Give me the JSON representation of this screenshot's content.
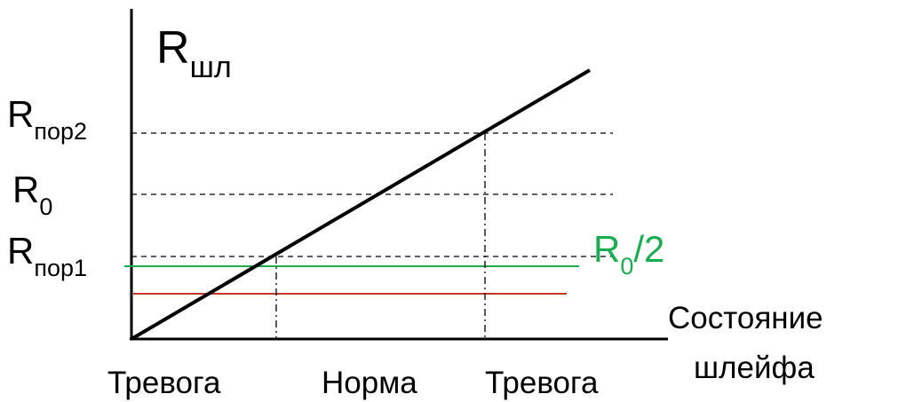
{
  "y_axis": {
    "symbol": "R",
    "subscript": "шл"
  },
  "x_axis": {
    "label_line1": "Состояние",
    "label_line2": "шлейфа"
  },
  "levels": {
    "r_por2": {
      "symbol": "R",
      "subscript": "пор2"
    },
    "r0": {
      "symbol": "R",
      "subscript": "0"
    },
    "r_por1": {
      "symbol": "R",
      "subscript": "пор1"
    },
    "r0_half": {
      "symbol": "R",
      "subscript": "0",
      "suffix": "/2"
    }
  },
  "states": [
    "Тревога",
    "Норма",
    "Тревога"
  ],
  "colors": {
    "axis": "#000000",
    "response_line": "#000000",
    "r0_half_line": "#1aad4f",
    "lower_line": "#c0392b",
    "guide": "#000000"
  }
}
